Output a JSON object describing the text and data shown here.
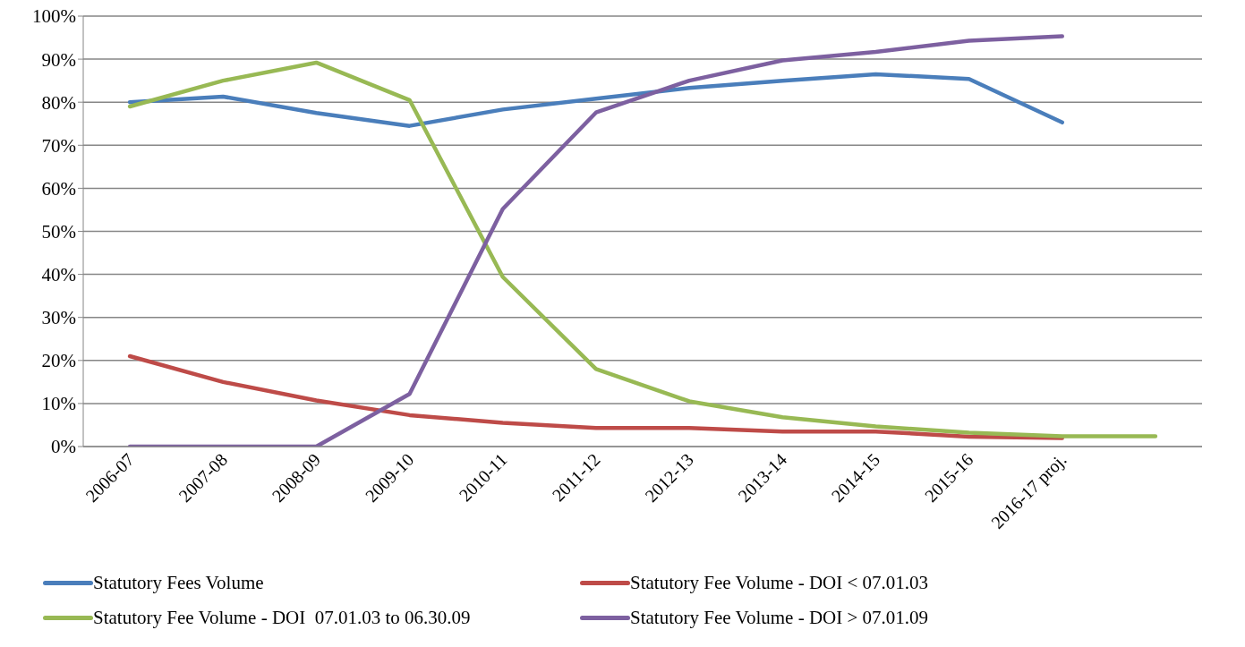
{
  "chart_data": {
    "type": "line",
    "categories": [
      "2006-07",
      "2007-08",
      "2008-09",
      "2009-10",
      "2010-11",
      "2011-12",
      "2012-13",
      "2013-14",
      "2014-15",
      "2015-16",
      "2016-17 proj.",
      null
    ],
    "series": [
      {
        "name": "Statutory Fees Volume",
        "color": "#4a7ebb",
        "values": [
          80,
          81.3,
          77.5,
          74.5,
          78.3,
          80.8,
          83.3,
          85,
          86.5,
          85.4,
          75.3,
          null
        ]
      },
      {
        "name": "Statutory Fee Volume - DOI < 07.01.03",
        "color": "#be4b48",
        "values": [
          21,
          15,
          10.7,
          7.3,
          5.5,
          4.3,
          4.3,
          3.5,
          3.5,
          2.3,
          2,
          null
        ]
      },
      {
        "name": "Statutory Fee Volume - DOI  07.01.03 to 06.30.09",
        "color": "#98b954",
        "values": [
          79,
          85,
          89.2,
          80.5,
          39.4,
          18,
          10.5,
          6.8,
          4.7,
          3.2,
          2.4,
          2.4
        ]
      },
      {
        "name": "Statutory Fee Volume - DOI > 07.01.09",
        "color": "#7d60a0",
        "values": [
          0,
          0,
          0,
          12.2,
          55.2,
          77.6,
          85,
          89.7,
          91.7,
          94.3,
          95.3,
          null
        ]
      }
    ],
    "ylim": [
      0,
      100
    ],
    "yticks": [
      {
        "value": 0,
        "label": "0%"
      },
      {
        "value": 10,
        "label": "10%"
      },
      {
        "value": 20,
        "label": "20%"
      },
      {
        "value": 30,
        "label": "30%"
      },
      {
        "value": 40,
        "label": "40%"
      },
      {
        "value": 50,
        "label": "50%"
      },
      {
        "value": 60,
        "label": "60%"
      },
      {
        "value": 70,
        "label": "70%"
      },
      {
        "value": 80,
        "label": "80%"
      },
      {
        "value": 90,
        "label": "90%"
      },
      {
        "value": 100,
        "label": "100%"
      }
    ],
    "grid": "y",
    "legend": "bottom",
    "marker": "none",
    "line_style": "solid"
  }
}
